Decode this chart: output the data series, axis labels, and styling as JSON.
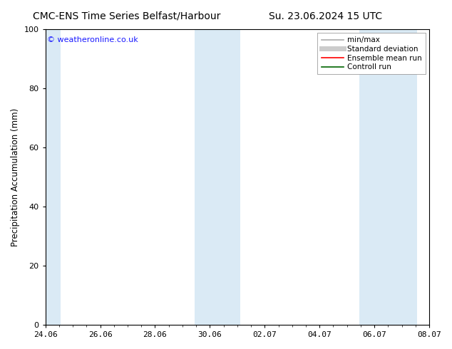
{
  "title_left": "CMC-ENS Time Series Belfast/Harbour",
  "title_right": "Su. 23.06.2024 15 UTC",
  "ylabel": "Precipitation Accumulation (mm)",
  "watermark": "© weatheronline.co.uk",
  "ylim": [
    0,
    100
  ],
  "yticks": [
    0,
    20,
    40,
    60,
    80,
    100
  ],
  "x_tick_labels": [
    "24.06",
    "26.06",
    "28.06",
    "30.06",
    "02.07",
    "04.07",
    "06.07",
    "08.07"
  ],
  "x_tick_positions": [
    0,
    2,
    4,
    6,
    8,
    10,
    12,
    14
  ],
  "x_total": 14,
  "shaded_bands": [
    {
      "x_start": 0.0,
      "x_end": 0.55
    },
    {
      "x_start": 5.45,
      "x_end": 7.1
    },
    {
      "x_start": 11.45,
      "x_end": 13.55
    }
  ],
  "shade_color": "#daeaf5",
  "background_color": "#ffffff",
  "plot_bg_color": "#ffffff",
  "legend_items": [
    {
      "label": "min/max",
      "color": "#aaaaaa",
      "lw": 1.2
    },
    {
      "label": "Standard deviation",
      "color": "#cccccc",
      "lw": 5
    },
    {
      "label": "Ensemble mean run",
      "color": "#ff0000",
      "lw": 1.2
    },
    {
      "label": "Controll run",
      "color": "#006400",
      "lw": 1.2
    }
  ],
  "watermark_color": "#1a1aff",
  "title_fontsize": 10,
  "axis_fontsize": 8.5,
  "tick_fontsize": 8,
  "legend_fontsize": 7.5
}
